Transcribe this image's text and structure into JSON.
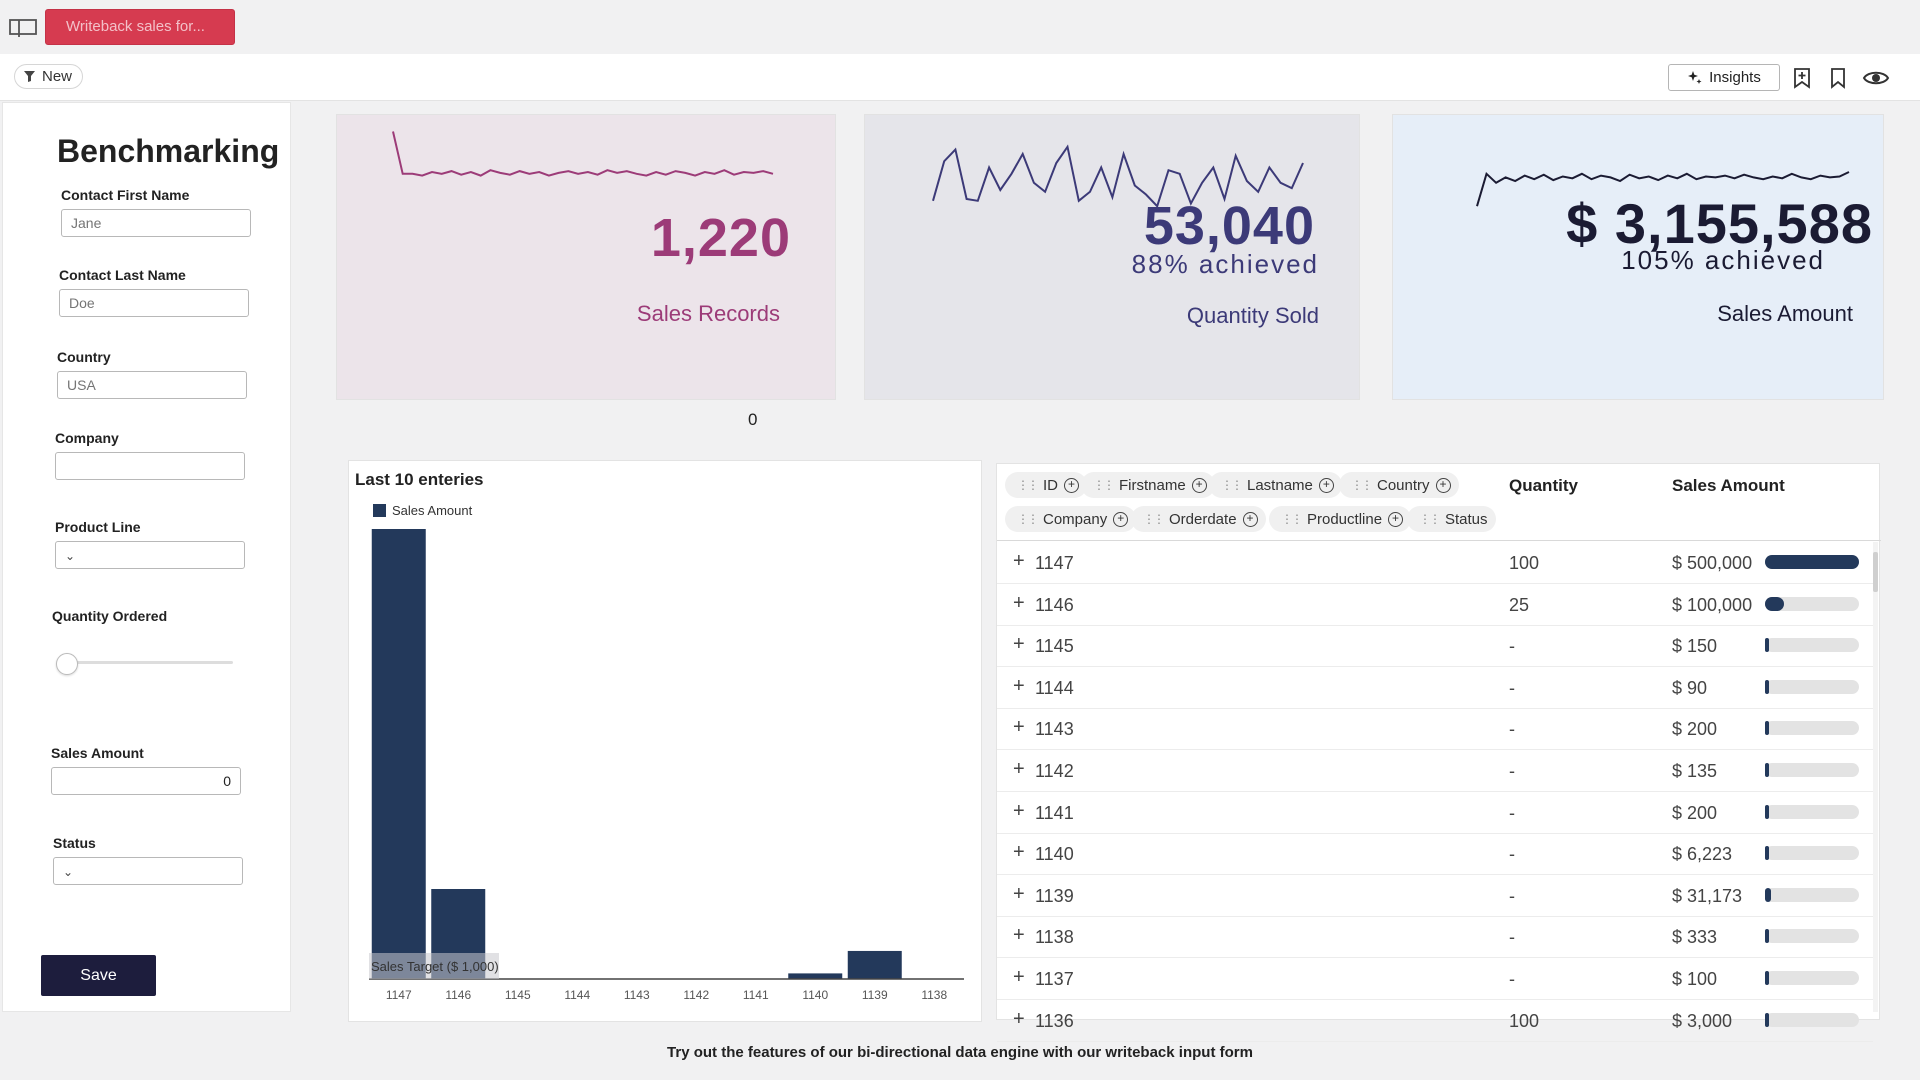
{
  "app": {
    "tab_title": "Writeback sales for..."
  },
  "toolbar": {
    "new_label": "New",
    "insights_label": "Insights"
  },
  "form": {
    "title": "Benchmarking",
    "contact_first_name": {
      "label": "Contact First Name",
      "placeholder": "Jane"
    },
    "contact_last_name": {
      "label": "Contact Last Name",
      "placeholder": "Doe"
    },
    "country": {
      "label": "Country",
      "placeholder": "USA"
    },
    "company": {
      "label": "Company",
      "value": ""
    },
    "product_line": {
      "label": "Product Line",
      "value": ""
    },
    "quantity_ordered": {
      "label": "Quantity Ordered",
      "value": 0
    },
    "sales_amount": {
      "label": "Sales Amount",
      "value": "0"
    },
    "status": {
      "label": "Status",
      "value": ""
    },
    "save_label": "Save"
  },
  "kpis": [
    {
      "value": "1,220",
      "sub": "",
      "label": "Sales Records",
      "color": "#9c3b78",
      "bg": "#ece4ea",
      "spark": [
        95,
        48,
        48,
        46,
        50,
        48,
        51,
        47,
        50,
        46,
        52,
        49,
        47,
        51,
        48,
        50,
        46,
        49,
        51,
        48,
        50,
        47,
        52,
        49,
        51,
        48,
        46,
        50,
        47,
        51,
        49,
        46,
        50,
        48,
        52,
        47,
        50,
        49,
        51,
        48
      ]
    },
    {
      "value": "53,040",
      "sub": "88% achieved",
      "label": "Quantity Sold",
      "color": "#3c3a78",
      "bg": "#e5e5ea",
      "spark": [
        18,
        62,
        75,
        20,
        18,
        55,
        30,
        48,
        70,
        38,
        28,
        60,
        78,
        18,
        28,
        55,
        22,
        70,
        35,
        25,
        12,
        52,
        48,
        15,
        38,
        55,
        20,
        68,
        40,
        28,
        55,
        38,
        32,
        60
      ]
    },
    {
      "value": "$ 3,155,588",
      "sub": "105% achieved",
      "label": "Sales Amount",
      "color": "#1b1b33",
      "bg": "#e6eef8",
      "spark": [
        12,
        48,
        38,
        44,
        40,
        46,
        42,
        47,
        41,
        45,
        43,
        48,
        42,
        46,
        44,
        40,
        47,
        43,
        45,
        41,
        46,
        43,
        48,
        42,
        45,
        44,
        46,
        43,
        47,
        44,
        42,
        45,
        43,
        48,
        44,
        42,
        46,
        44,
        45,
        50
      ]
    }
  ],
  "kpi_footnote": "0",
  "chart_data": {
    "type": "bar",
    "title": "Last 10 enteries",
    "legend": [
      "Sales Amount"
    ],
    "categories": [
      "1147",
      "1146",
      "1145",
      "1144",
      "1143",
      "1142",
      "1141",
      "1140",
      "1139",
      "1138"
    ],
    "series": [
      {
        "name": "Sales Amount",
        "values": [
          500000,
          100000,
          150,
          90,
          200,
          135,
          200,
          6223,
          31173,
          333
        ]
      }
    ],
    "target_label": "Sales Target  ($ 1,000)",
    "target_value": 1000,
    "ylim": [
      0,
      500000
    ],
    "color": "#23395b"
  },
  "table": {
    "pills_row1": [
      "ID",
      "Firstname",
      "Lastname",
      "Country"
    ],
    "pills_row2": [
      "Company",
      "Orderdate",
      "Productline",
      "Status"
    ],
    "headers": {
      "quantity": "Quantity",
      "sales_amount": "Sales Amount"
    },
    "max_amount": 500000,
    "rows": [
      {
        "id": "1147",
        "qty": "100",
        "amt": "$ 500,000",
        "value": 500000
      },
      {
        "id": "1146",
        "qty": "25",
        "amt": "$ 100,000",
        "value": 100000
      },
      {
        "id": "1145",
        "qty": "-",
        "amt": "$ 150",
        "value": 150
      },
      {
        "id": "1144",
        "qty": "-",
        "amt": "$ 90",
        "value": 90
      },
      {
        "id": "1143",
        "qty": "-",
        "amt": "$ 200",
        "value": 200
      },
      {
        "id": "1142",
        "qty": "-",
        "amt": "$ 135",
        "value": 135
      },
      {
        "id": "1141",
        "qty": "-",
        "amt": "$ 200",
        "value": 200
      },
      {
        "id": "1140",
        "qty": "-",
        "amt": "$ 6,223",
        "value": 6223
      },
      {
        "id": "1139",
        "qty": "-",
        "amt": "$ 31,173",
        "value": 31173
      },
      {
        "id": "1138",
        "qty": "-",
        "amt": "$ 333",
        "value": 333
      },
      {
        "id": "1137",
        "qty": "-",
        "amt": "$ 100",
        "value": 100
      },
      {
        "id": "1136",
        "qty": "100",
        "amt": "$ 3,000",
        "value": 3000
      }
    ]
  },
  "footer_text": "Try out the features of our bi-directional data engine with our writeback input form"
}
